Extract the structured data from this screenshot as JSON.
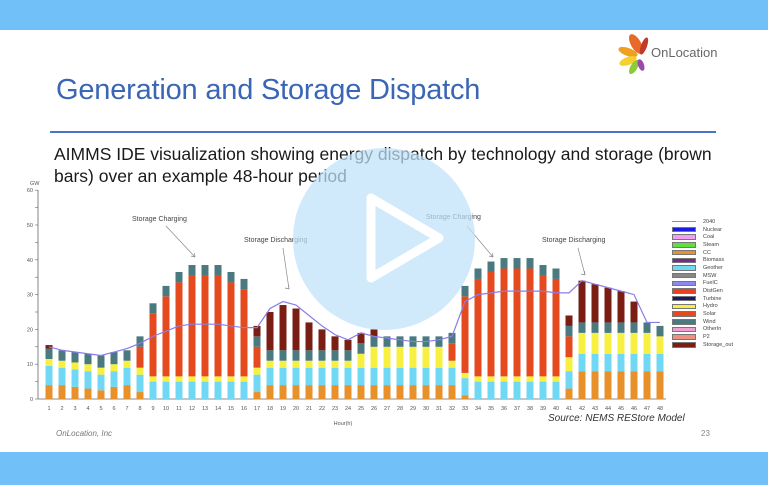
{
  "slide": {
    "title": "Generation and Storage Dispatch",
    "subtitle": "AIMMS IDE visualization showing energy dispatch by technology and storage (brown bars) over an example 48-hour period",
    "logo_text": "OnLocation",
    "footer_left": "OnLocation, Inc",
    "source": "Source:  NEMS REStore Model",
    "page_number": "23"
  },
  "video_overlay": {
    "icon": "play-icon"
  },
  "colors": {
    "bar_top": "#72c0f8",
    "title": "#3a66b5",
    "rule": "#4a74c9"
  },
  "chart_data": {
    "type": "bar",
    "stacked": true,
    "title": "",
    "xlabel": "Hour(h)",
    "ylabel": "GW",
    "ylim": [
      0,
      60
    ],
    "yticks": [
      0,
      10,
      20,
      30,
      40,
      50,
      60
    ],
    "categories": [
      "1",
      "2",
      "3",
      "4",
      "5",
      "6",
      "7",
      "8",
      "9",
      "10",
      "11",
      "12",
      "13",
      "14",
      "15",
      "16",
      "17",
      "18",
      "19",
      "20",
      "21",
      "22",
      "23",
      "24",
      "25",
      "26",
      "27",
      "28",
      "29",
      "30",
      "31",
      "32",
      "33",
      "34",
      "35",
      "36",
      "37",
      "38",
      "39",
      "40",
      "41",
      "42",
      "43",
      "44",
      "45",
      "46",
      "47",
      "48"
    ],
    "annotations": [
      {
        "text": "Storage Charging",
        "x": 12
      },
      {
        "text": "Storage Discharging",
        "x": 19
      },
      {
        "text": "Storage Charging",
        "x": 35
      },
      {
        "text": "Storage Discharging",
        "x": 43
      }
    ],
    "legend": [
      "2040",
      "Nuclear",
      "Coal",
      "Steam",
      "CC",
      "Biomass",
      "Geother",
      "MSW",
      "FuelC",
      "DistGen",
      "Turbine",
      "Hydro",
      "Solar",
      "Wind",
      "OtherIn",
      "P2",
      "Storage_out"
    ],
    "legend_colors": {
      "2040": "#8a7de8",
      "Nuclear": "#1a1ae0",
      "Coal": "#f0a0f0",
      "Steam": "#60e040",
      "CC": "#e8902a",
      "Biomass": "#7a2a8a",
      "Geother": "#70d8f4",
      "MSW": "#888888",
      "FuelC": "#8888f0",
      "DistGen": "#e84020",
      "Turbine": "#1a1a6a",
      "Hydro": "#f8f040",
      "Solar": "#e44a1e",
      "Wind": "#4a7a80",
      "OtherIn": "#f0a0d0",
      "P2": "#f09080",
      "Storage_out": "#7a1e14"
    },
    "series": [
      {
        "name": "CC",
        "values": [
          4,
          4,
          3.5,
          3,
          2.5,
          3.5,
          4,
          2,
          0,
          0,
          0,
          0,
          0,
          0,
          0,
          0,
          2,
          4,
          4,
          4,
          4,
          4,
          4,
          4,
          4,
          4,
          4,
          4,
          4,
          4,
          4,
          4,
          1,
          0,
          0,
          0,
          0,
          0,
          0,
          0,
          3,
          8,
          8,
          8,
          8,
          8,
          8,
          8
        ]
      },
      {
        "name": "Geother",
        "values": [
          5.5,
          5,
          5,
          5,
          4.5,
          4.5,
          5,
          5,
          5,
          5,
          5,
          5,
          5,
          5,
          5,
          5,
          5,
          5,
          5,
          5,
          5,
          5,
          5,
          5,
          5,
          5,
          5,
          5,
          5,
          5,
          5,
          5,
          5,
          5,
          5,
          5,
          5,
          5,
          5,
          5,
          5,
          5,
          5,
          5,
          5,
          5,
          5,
          5
        ]
      },
      {
        "name": "Hydro",
        "values": [
          2,
          2,
          2,
          2,
          2,
          2,
          2,
          2,
          1.5,
          1.5,
          1.5,
          1.5,
          1.5,
          1.5,
          1.5,
          1.5,
          2,
          2,
          2,
          2,
          2,
          2,
          2,
          2,
          4,
          6,
          6,
          6,
          6,
          6,
          6,
          2,
          1.5,
          1.5,
          1.5,
          1.5,
          1.5,
          1.5,
          1.5,
          1.5,
          4,
          6,
          6,
          6,
          6,
          6,
          6,
          5
        ]
      },
      {
        "name": "Solar",
        "values": [
          0,
          0,
          0,
          0,
          0,
          0,
          0,
          6,
          18,
          23,
          27,
          29,
          29,
          29,
          27,
          25,
          6,
          0,
          0,
          0,
          0,
          0,
          0,
          0,
          0,
          0,
          0,
          0,
          0,
          0,
          0,
          5,
          22,
          28,
          30,
          31,
          31,
          31,
          29,
          28,
          6,
          0,
          0,
          0,
          0,
          0,
          0,
          0
        ]
      },
      {
        "name": "Wind",
        "values": [
          3,
          3,
          3,
          3,
          3.5,
          3.5,
          3,
          3,
          3,
          3,
          3,
          3,
          3,
          3,
          3,
          3,
          3,
          3,
          3,
          3,
          3,
          3,
          3,
          3,
          3,
          3,
          3,
          3,
          3,
          3,
          3,
          3,
          3,
          3,
          3,
          3,
          3,
          3,
          3,
          3,
          3,
          3,
          3,
          3,
          3,
          3,
          3,
          3
        ]
      },
      {
        "name": "Storage_out",
        "values": [
          1,
          0,
          0,
          0,
          0,
          0,
          0,
          0,
          0,
          0,
          0,
          0,
          0,
          0,
          0,
          0,
          3,
          11,
          13,
          12,
          8,
          6,
          4,
          3,
          3,
          2,
          0,
          0,
          0,
          0,
          0,
          0,
          0,
          0,
          0,
          0,
          0,
          0,
          0,
          0,
          3,
          12,
          11,
          10,
          9,
          6,
          0,
          0
        ]
      },
      {
        "name": "2040",
        "type": "line",
        "values": [
          15,
          14,
          13.5,
          13,
          12.5,
          13.5,
          14.5,
          16,
          18,
          19.5,
          21,
          21.5,
          21.5,
          21.5,
          21,
          20.5,
          20.5,
          26,
          28,
          27,
          24,
          21,
          18.5,
          17,
          19,
          18,
          17.5,
          17,
          16.5,
          16.5,
          17,
          18,
          28,
          30,
          30.5,
          31,
          31,
          31,
          31,
          30.5,
          30.5,
          34,
          33,
          32,
          31,
          30,
          22,
          22
        ]
      }
    ]
  }
}
